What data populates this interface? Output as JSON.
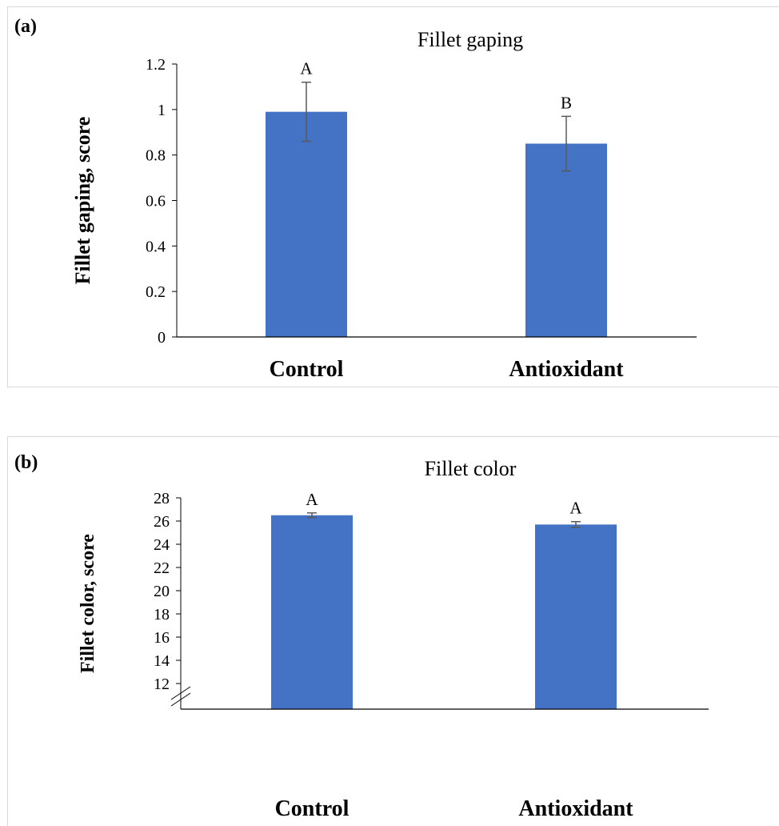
{
  "chart_data": [
    {
      "type": "bar",
      "panel_label": "(a)",
      "title": "Fillet gaping",
      "ylabel": "Fillet gaping, score",
      "xlabel": "",
      "categories": [
        "Control",
        "Antioxidant"
      ],
      "values": [
        0.99,
        0.85
      ],
      "errors": [
        0.13,
        0.12
      ],
      "letters": [
        "A",
        "B"
      ],
      "ylim": [
        0,
        1.2
      ],
      "yticks": [
        "0",
        "0.2",
        "0.4",
        "0.6",
        "0.8",
        "1",
        "1.2"
      ],
      "axis_break": false,
      "bar_color": "#4472C4",
      "grid": false,
      "legend": "none"
    },
    {
      "type": "bar",
      "panel_label": "(b)",
      "title": "Fillet color",
      "ylabel": "Fillet color, score",
      "xlabel": "",
      "categories": [
        "Control",
        "Antioxidant"
      ],
      "values": [
        26.5,
        25.7
      ],
      "errors": [
        0.2,
        0.25
      ],
      "letters": [
        "A",
        "A"
      ],
      "ylim": [
        11,
        28
      ],
      "yticks": [
        "12",
        "14",
        "16",
        "18",
        "20",
        "22",
        "24",
        "26",
        "28"
      ],
      "axis_break": true,
      "bar_color": "#4472C4",
      "grid": false,
      "legend": "none"
    }
  ]
}
